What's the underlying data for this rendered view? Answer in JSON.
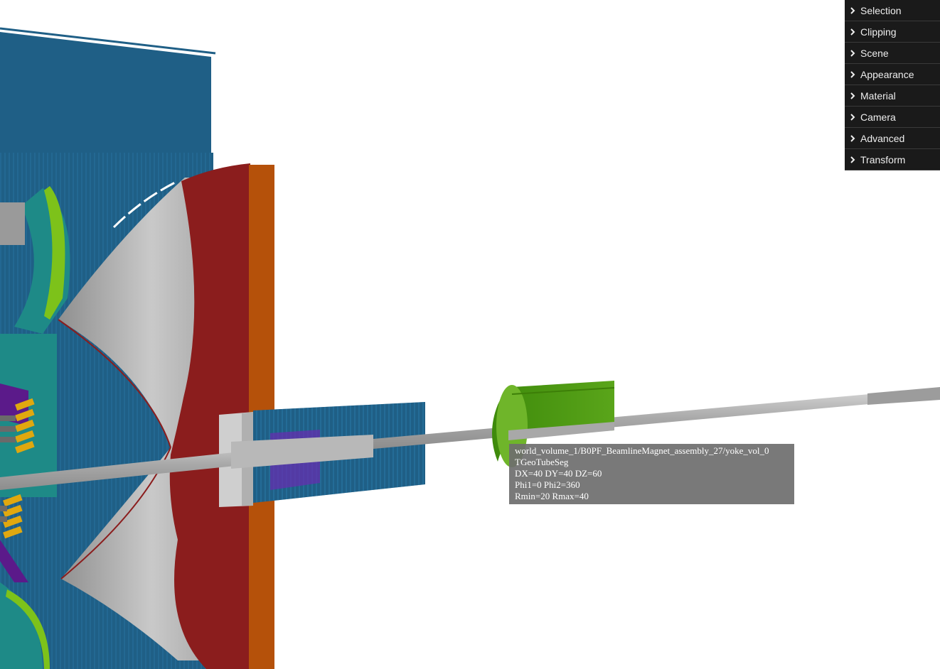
{
  "menu": {
    "items": [
      {
        "label": "Selection"
      },
      {
        "label": "Clipping"
      },
      {
        "label": "Scene"
      },
      {
        "label": "Appearance"
      },
      {
        "label": "Material"
      },
      {
        "label": "Camera"
      },
      {
        "label": "Advanced"
      },
      {
        "label": "Transform"
      }
    ],
    "icon": "chevron-right-icon"
  },
  "tooltip": {
    "path": "world_volume_1/B0PF_BeamlineMagnet_assembly_27/yoke_vol_0",
    "shape": "TGeoTubeSeg",
    "dims": "DX=40 DY=40 DZ=60",
    "phi": "Phi1=0 Phi2=360",
    "radii": "Rmin=20 Rmax=40"
  },
  "colors": {
    "background": "#ffffff",
    "menu_bg": "#1a1a1a",
    "detector_blue": "#1f5f86",
    "endcap_red": "#8b1d1d",
    "endcap_orange": "#b5510a",
    "cone_gray": "#bdbdbd",
    "magnet_green": "#4f9a12",
    "beampipe_gray": "#a8a8a8"
  }
}
